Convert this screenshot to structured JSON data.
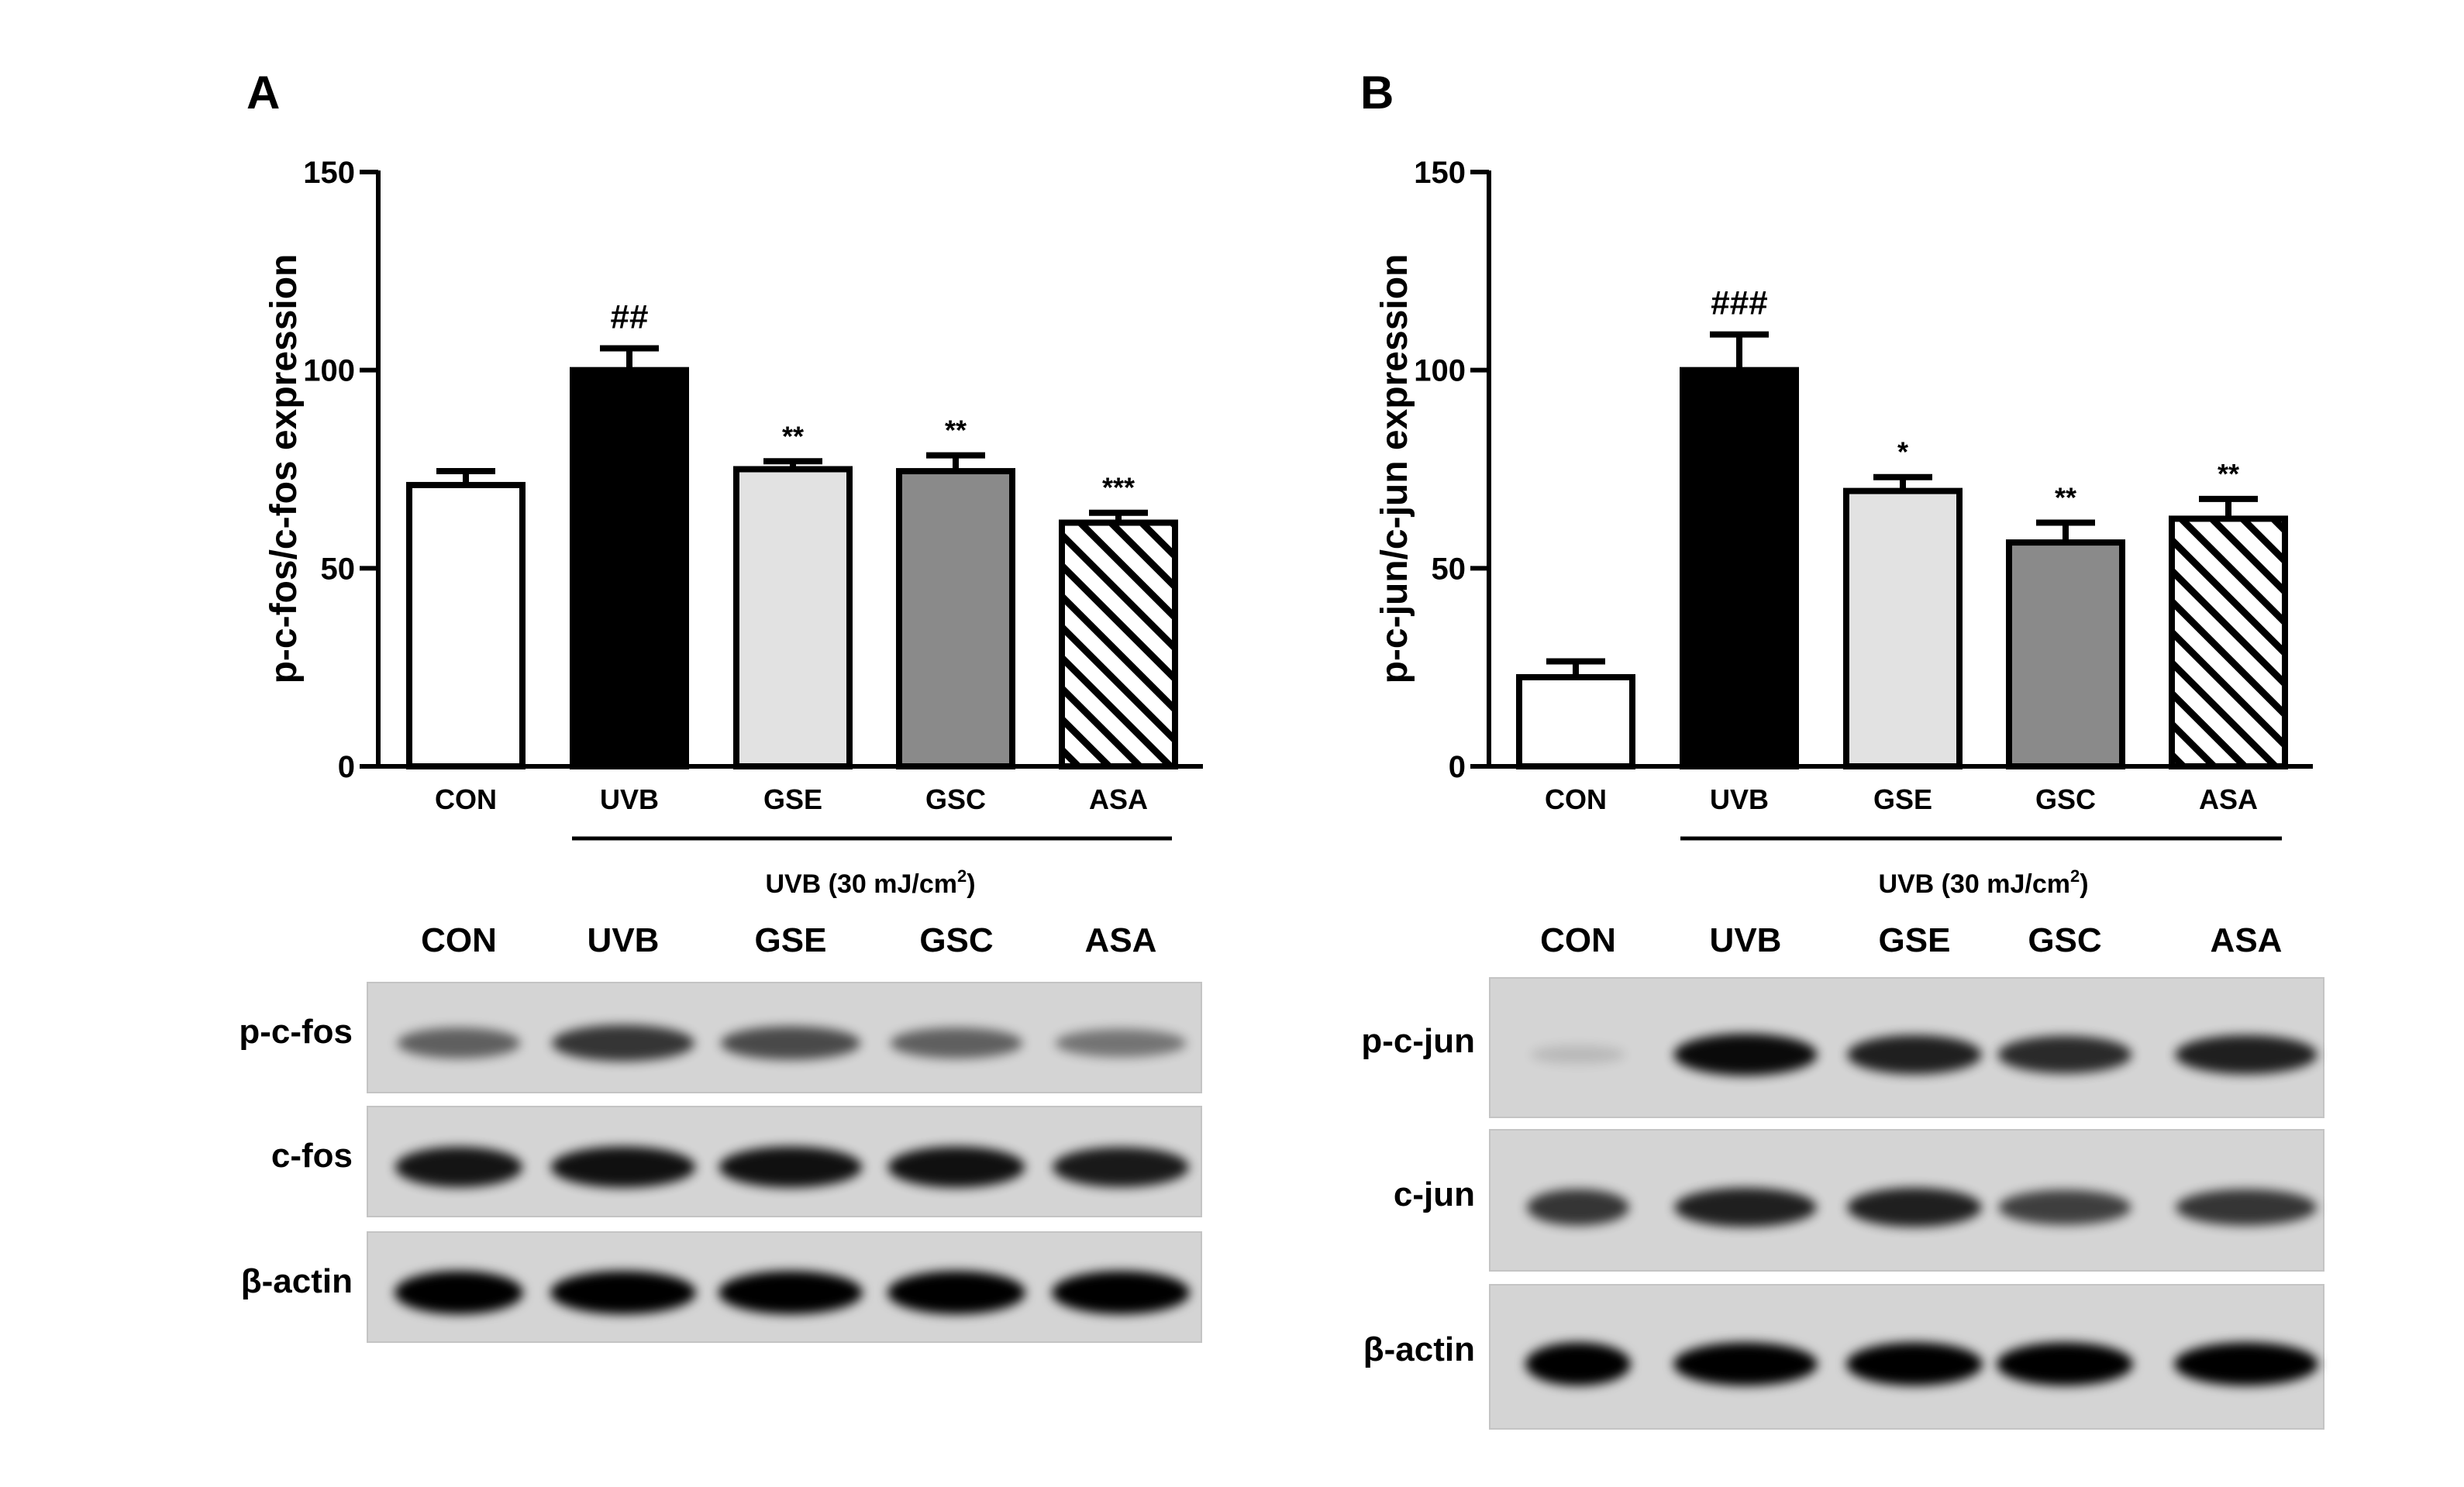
{
  "chart_data": [
    {
      "panel": "A",
      "type": "bar",
      "title": "",
      "xlabel": "",
      "ylabel": "p-c-fos/c-fos expression",
      "ylim": [
        0,
        150
      ],
      "yticks": [
        0,
        50,
        100,
        150
      ],
      "categories": [
        "CON",
        "UVB",
        "GSE",
        "GSC",
        "ASA"
      ],
      "values": [
        71,
        100,
        75,
        74.5,
        61.5
      ],
      "errors": [
        3.5,
        5.5,
        2,
        4,
        2.5
      ],
      "annotations": [
        "",
        "##",
        "**",
        "**",
        "***"
      ],
      "fills": [
        "#ffffff",
        "#000000",
        "#e2e2e2",
        "#8a8a8a",
        "hatch"
      ],
      "group_label": "UVB (30 mJ/cm",
      "group_label_sup": "2",
      "group_label_end": ")",
      "blot": {
        "lanes": [
          "CON",
          "UVB",
          "GSE",
          "GSC",
          "ASA"
        ],
        "rows": [
          {
            "label": "p-c-fos",
            "intensity": [
              0.55,
              0.75,
              0.65,
              0.55,
              0.45
            ]
          },
          {
            "label": "c-fos",
            "intensity": [
              0.9,
              0.92,
              0.92,
              0.92,
              0.88
            ]
          },
          {
            "label": "β-actin",
            "intensity": [
              1,
              1,
              1,
              1,
              1
            ]
          }
        ]
      }
    },
    {
      "panel": "B",
      "type": "bar",
      "title": "",
      "xlabel": "",
      "ylabel": "p-c-jun/c-jun expression",
      "ylim": [
        0,
        150
      ],
      "yticks": [
        0,
        50,
        100,
        150
      ],
      "categories": [
        "CON",
        "UVB",
        "GSE",
        "GSC",
        "ASA"
      ],
      "values": [
        22.5,
        100,
        69.5,
        56.5,
        62.5
      ],
      "errors": [
        4,
        9,
        3.5,
        5,
        5
      ],
      "annotations": [
        "",
        "###",
        "*",
        "**",
        "**"
      ],
      "fills": [
        "#ffffff",
        "#000000",
        "#e2e2e2",
        "#8a8a8a",
        "hatch"
      ],
      "group_label": "UVB (30 mJ/cm",
      "group_label_sup": "2",
      "group_label_end": ")",
      "blot": {
        "lanes": [
          "CON",
          "UVB",
          "GSE",
          "GSC",
          "ASA"
        ],
        "rows": [
          {
            "label": "p-c-jun",
            "intensity": [
              0.12,
              0.95,
              0.85,
              0.8,
              0.85
            ]
          },
          {
            "label": "c-jun",
            "intensity": [
              0.75,
              0.85,
              0.85,
              0.7,
              0.75
            ]
          },
          {
            "label": "β-actin",
            "intensity": [
              1,
              1,
              1,
              1,
              1
            ]
          }
        ]
      }
    }
  ]
}
